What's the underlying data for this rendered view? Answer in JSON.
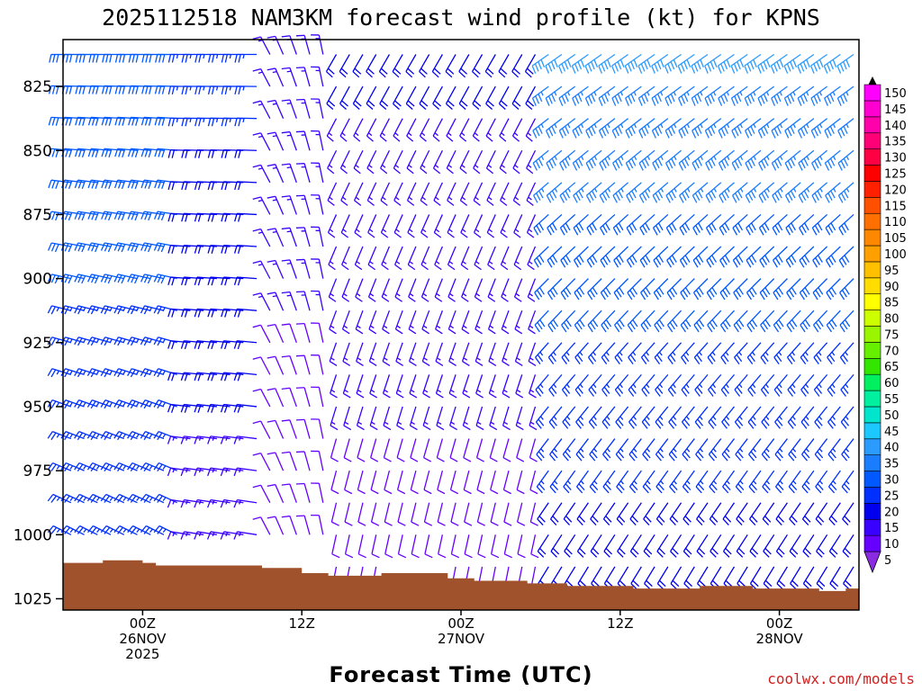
{
  "title": "2025112518 NAM3KM forecast wind profile (kt) for KPNS",
  "credit": "coolwx.com/models",
  "chart_data": {
    "type": "wind-barb time-height profile",
    "title": "2025112518 NAM3KM forecast wind profile (kt) for KPNS",
    "xlabel": "Forecast Time (UTC)",
    "ylabel": "",
    "y_axis": {
      "scale": "pressure (hPa), inverted",
      "ylim": [
        1030,
        800
      ],
      "tick_values": [
        825,
        850,
        875,
        900,
        925,
        950,
        975,
        1000,
        1025
      ]
    },
    "x_axis": {
      "xlim_hours_since_init": [
        0,
        60
      ],
      "ticks": [
        {
          "hour": 6,
          "lines": [
            "00Z",
            "26NOV",
            "2025"
          ]
        },
        {
          "hour": 18,
          "lines": [
            "12Z"
          ]
        },
        {
          "hour": 30,
          "lines": [
            "00Z",
            "27NOV"
          ]
        },
        {
          "hour": 42,
          "lines": [
            "12Z"
          ]
        },
        {
          "hour": 54,
          "lines": [
            "00Z",
            "28NOV"
          ]
        }
      ]
    },
    "time_step_hours": 1,
    "pressure_levels": [
      812.5,
      825,
      837.5,
      850,
      862.5,
      875,
      887.5,
      900,
      912.5,
      925,
      937.5,
      950,
      962.5,
      975,
      987.5,
      1000,
      1012.5,
      1025
    ],
    "wind_regimes": [
      {
        "hours": "0-9",
        "description": "northwesterly to westerly winds 20-35 kt at all levels"
      },
      {
        "hours": "9-15",
        "description": "westerly winds 15-25 kt aloft, weakening near surface"
      },
      {
        "hours": "15-20",
        "description": "veering to northwesterly/northerly 10-15 kt"
      },
      {
        "hours": "20-36",
        "description": "southerly/southwesterly winds 10-20 kt"
      },
      {
        "hours": "36-60",
        "description": "southwesterly winds strengthening to 30-40 kt aloft"
      }
    ],
    "surface_pressure": [
      {
        "hour": 0,
        "p": 1011
      },
      {
        "hour": 3,
        "p": 1010
      },
      {
        "hour": 6,
        "p": 1011
      },
      {
        "hour": 7,
        "p": 1012
      },
      {
        "hour": 15,
        "p": 1013
      },
      {
        "hour": 18,
        "p": 1015
      },
      {
        "hour": 20,
        "p": 1016
      },
      {
        "hour": 24,
        "p": 1015
      },
      {
        "hour": 29,
        "p": 1017
      },
      {
        "hour": 31,
        "p": 1018
      },
      {
        "hour": 35,
        "p": 1019
      },
      {
        "hour": 38,
        "p": 1020
      },
      {
        "hour": 43,
        "p": 1021
      },
      {
        "hour": 48,
        "p": 1020
      },
      {
        "hour": 52,
        "p": 1021
      },
      {
        "hour": 57,
        "p": 1022
      },
      {
        "hour": 59,
        "p": 1021
      },
      {
        "hour": 60,
        "p": 1022
      }
    ],
    "colorbar": {
      "values": [
        5,
        10,
        15,
        20,
        25,
        30,
        35,
        40,
        45,
        50,
        55,
        60,
        65,
        70,
        75,
        80,
        85,
        90,
        95,
        100,
        105,
        110,
        115,
        120,
        125,
        130,
        135,
        140,
        145,
        150
      ],
      "colors": [
        "#8a2be2",
        "#6600ff",
        "#3a00ff",
        "#0000ee",
        "#0030ff",
        "#0058ff",
        "#1a7cff",
        "#2b9bff",
        "#1cc8ff",
        "#00e5cc",
        "#00f0a0",
        "#00f060",
        "#33e600",
        "#66f000",
        "#99f500",
        "#ccff00",
        "#ffff00",
        "#ffdd00",
        "#ffc000",
        "#ffa000",
        "#ff8800",
        "#ff7000",
        "#ff5000",
        "#ff2000",
        "#ff0000",
        "#ff0044",
        "#ff0077",
        "#ff00aa",
        "#ff00d0",
        "#ff00ff"
      ]
    },
    "terrain_color": "#a0522d"
  }
}
